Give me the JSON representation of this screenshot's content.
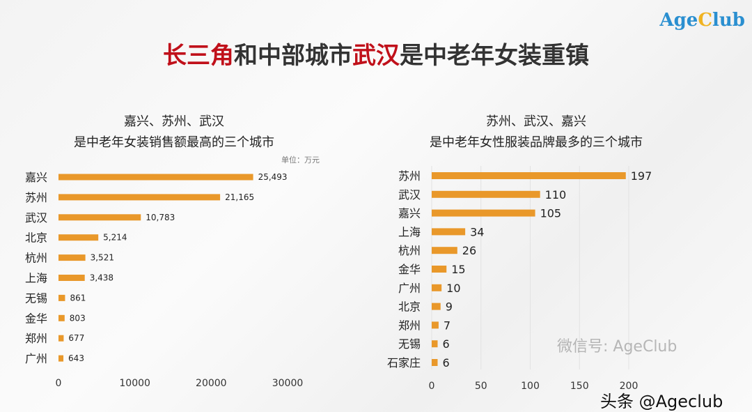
{
  "logo": {
    "text_a": "Age",
    "text_c": "C",
    "text_b": "lub"
  },
  "title": {
    "part1": "长三角",
    "part2": "和中部城市",
    "part3": "武汉",
    "part4": "是中老年女装重镇"
  },
  "colors": {
    "bar": "#e9982a",
    "accent_red": "#c0101a"
  },
  "chart_data": [
    {
      "type": "bar",
      "orientation": "horizontal",
      "title_line1": "嘉兴、苏州、武汉",
      "title_line2": "是中老年女装销售额最高的三个城市",
      "unit": "单位：万元",
      "categories": [
        "嘉兴",
        "苏州",
        "武汉",
        "北京",
        "杭州",
        "上海",
        "无锡",
        "金华",
        "郑州",
        "广州"
      ],
      "values": [
        25493,
        21165,
        10783,
        5214,
        3521,
        3438,
        861,
        803,
        677,
        643
      ],
      "labels": [
        "25,493",
        "21,165",
        "10,783",
        "5,214",
        "3,521",
        "3,438",
        "861",
        "803",
        "677",
        "643"
      ],
      "xlim": [
        0,
        30000
      ],
      "ticks": [
        "0",
        "10000",
        "20000",
        "30000"
      ],
      "tick_values": [
        0,
        10000,
        20000,
        30000
      ]
    },
    {
      "type": "bar",
      "orientation": "horizontal",
      "title_line1": "苏州、武汉、嘉兴",
      "title_line2": "是中老年女性服装品牌最多的三个城市",
      "categories": [
        "苏州",
        "武汉",
        "嘉兴",
        "上海",
        "杭州",
        "金华",
        "广州",
        "北京",
        "郑州",
        "无锡",
        "石家庄"
      ],
      "values": [
        197,
        110,
        105,
        34,
        26,
        15,
        10,
        9,
        7,
        6,
        6
      ],
      "labels": [
        "197",
        "110",
        "105",
        "34",
        "26",
        "15",
        "10",
        "9",
        "7",
        "6",
        "6"
      ],
      "xlim": [
        0,
        200
      ],
      "ticks": [
        "0",
        "50",
        "100",
        "150",
        "200"
      ],
      "tick_values": [
        0,
        50,
        100,
        150,
        200
      ],
      "grid": true
    }
  ],
  "watermark": {
    "wechat": "微信号: AgeClub",
    "toutiao": "头条 @Ageclub"
  }
}
